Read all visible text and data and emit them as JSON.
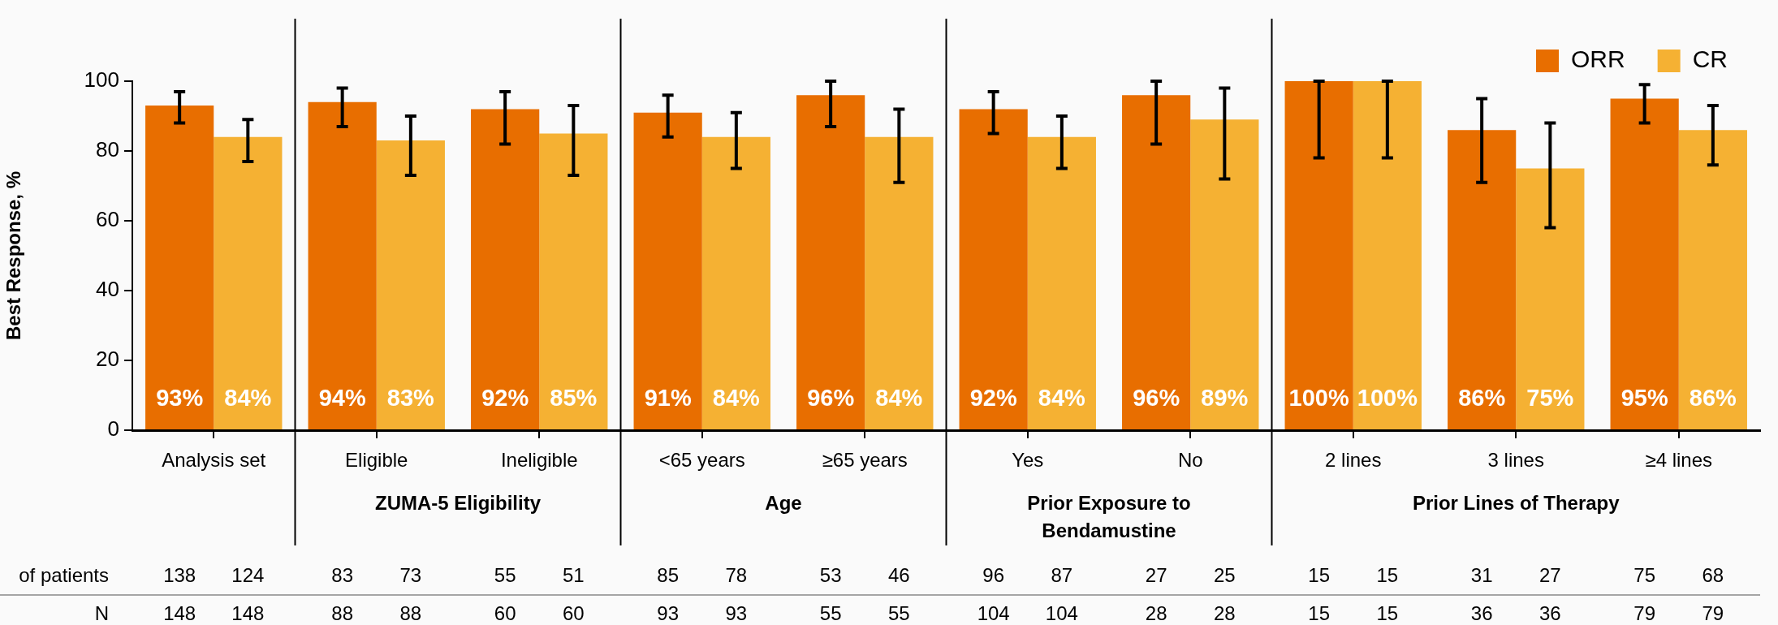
{
  "chart_data": {
    "type": "bar",
    "ylabel": "Best Response, %",
    "categories": [
      "Analysis set",
      "Eligible",
      "Ineligible",
      "<65 years",
      "≥65 years",
      "Yes",
      "No",
      "2 lines",
      "3 lines",
      "≥4 lines"
    ],
    "series": [
      {
        "name": "ORR",
        "color": "#e86e00",
        "values": [
          93,
          94,
          92,
          91,
          96,
          92,
          96,
          100,
          86,
          95
        ],
        "errors": [
          [
            88,
            97
          ],
          [
            87,
            98
          ],
          [
            82,
            97
          ],
          [
            84,
            96
          ],
          [
            87,
            100
          ],
          [
            85,
            97
          ],
          [
            82,
            100
          ],
          [
            78,
            100
          ],
          [
            71,
            95
          ],
          [
            88,
            99
          ]
        ],
        "value_labels": [
          "93%",
          "94%",
          "92%",
          "91%",
          "96%",
          "92%",
          "96%",
          "100%",
          "86%",
          "95%"
        ]
      },
      {
        "name": "CR",
        "color": "#f5b133",
        "values": [
          84,
          83,
          85,
          84,
          84,
          84,
          89,
          100,
          75,
          86
        ],
        "errors": [
          [
            77,
            89
          ],
          [
            73,
            90
          ],
          [
            73,
            93
          ],
          [
            75,
            91
          ],
          [
            71,
            92
          ],
          [
            75,
            90
          ],
          [
            72,
            98
          ],
          [
            78,
            100
          ],
          [
            58,
            88
          ],
          [
            76,
            93
          ]
        ],
        "value_labels": [
          "84%",
          "83%",
          "85%",
          "84%",
          "84%",
          "84%",
          "89%",
          "100%",
          "75%",
          "86%"
        ]
      }
    ],
    "ylim": [
      0,
      100
    ],
    "yticks": [
      0,
      20,
      40,
      60,
      80,
      100
    ],
    "grid": false,
    "legend": "top right",
    "annotations": [
      "ZUMA-5 Eligibility",
      "Age",
      "Prior Exposure to Bendamustine",
      "Prior Lines of Therapy",
      "of patients",
      "138",
      "124",
      "83",
      "73",
      "55",
      "51",
      "85",
      "78",
      "53",
      "46",
      "96",
      "87",
      "27",
      "25",
      "15",
      "15",
      "31",
      "27",
      "75",
      "68",
      "N",
      "148",
      "148",
      "88",
      "88",
      "60",
      "60",
      "93",
      "93",
      "55",
      "55",
      "104",
      "104",
      "28",
      "28",
      "15",
      "15",
      "36",
      "36",
      "79",
      "79"
    ]
  }
}
